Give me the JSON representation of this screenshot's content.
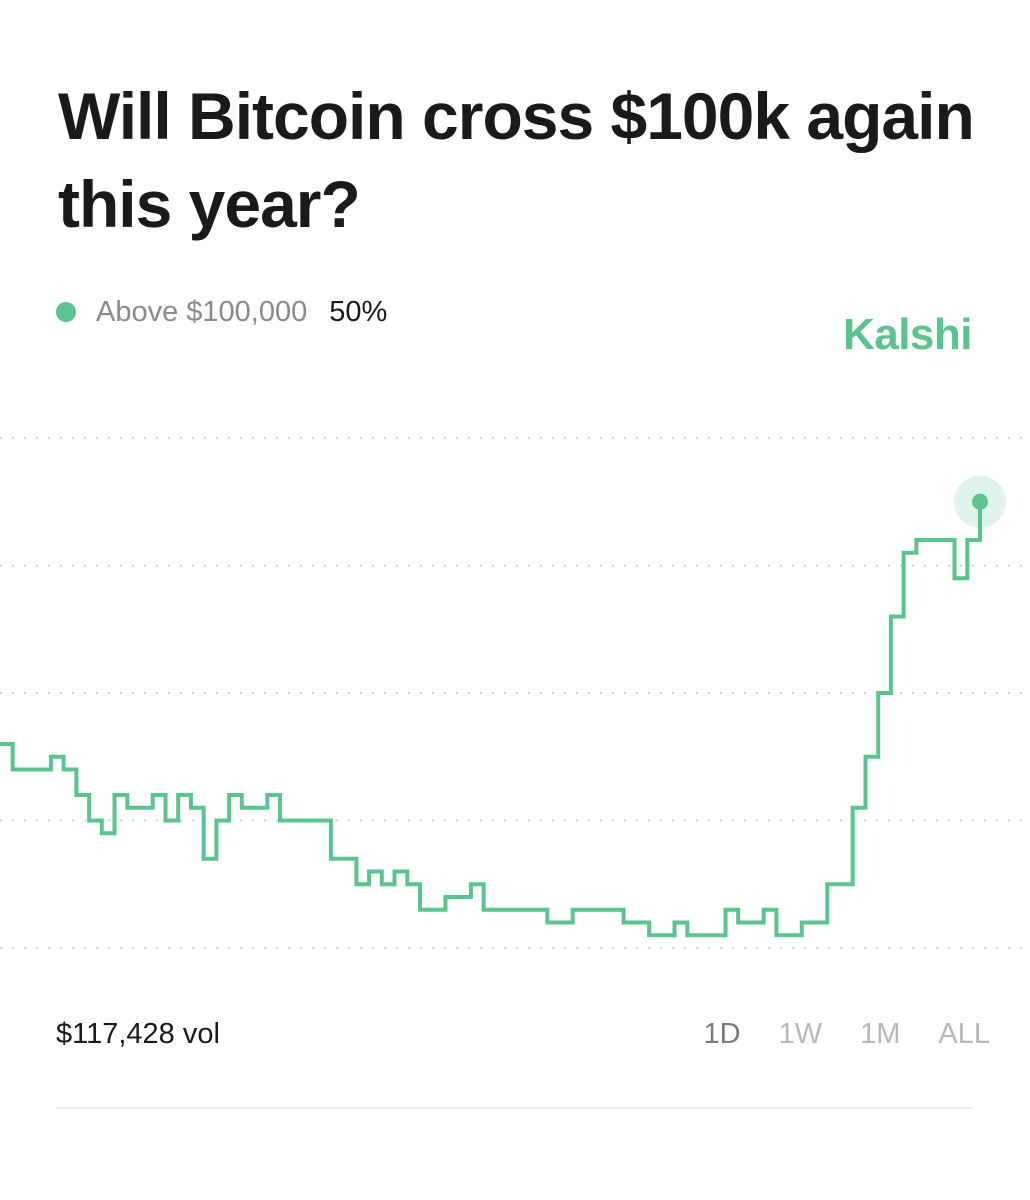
{
  "title": "Will Bitcoin cross $100k again this year?",
  "legend": {
    "label": "Above $100,000",
    "value": "50%"
  },
  "brand": "Kalshi",
  "volume": "$117,428 vol",
  "ranges": [
    "1D",
    "1W",
    "1M",
    "ALL"
  ],
  "active_range": "1D",
  "colors": {
    "accent": "#5bc48e",
    "grid": "#cfcfcf",
    "text": "#1a1a1a",
    "muted": "#8a8a8a"
  },
  "chart_data": {
    "type": "line",
    "series": [
      {
        "name": "Above $100,000",
        "values": [
          31,
          29,
          29,
          29,
          30,
          29,
          27,
          25,
          24,
          27,
          26,
          26,
          27,
          25,
          27,
          26,
          22,
          25,
          27,
          26,
          26,
          27,
          25,
          25,
          25,
          25,
          22,
          22,
          20,
          21,
          20,
          21,
          20,
          18,
          18,
          19,
          19,
          20,
          18,
          18,
          18,
          18,
          18,
          17,
          17,
          18,
          18,
          18,
          18,
          17,
          17,
          16,
          16,
          17,
          16,
          16,
          16,
          18,
          17,
          17,
          18,
          16,
          16,
          17,
          17,
          20,
          20,
          26,
          30,
          35,
          41,
          46,
          47,
          47,
          47,
          44,
          47,
          50
        ]
      }
    ],
    "ylim": [
      15,
      55
    ],
    "grid": "dotted horizontal",
    "end_marker": true
  }
}
